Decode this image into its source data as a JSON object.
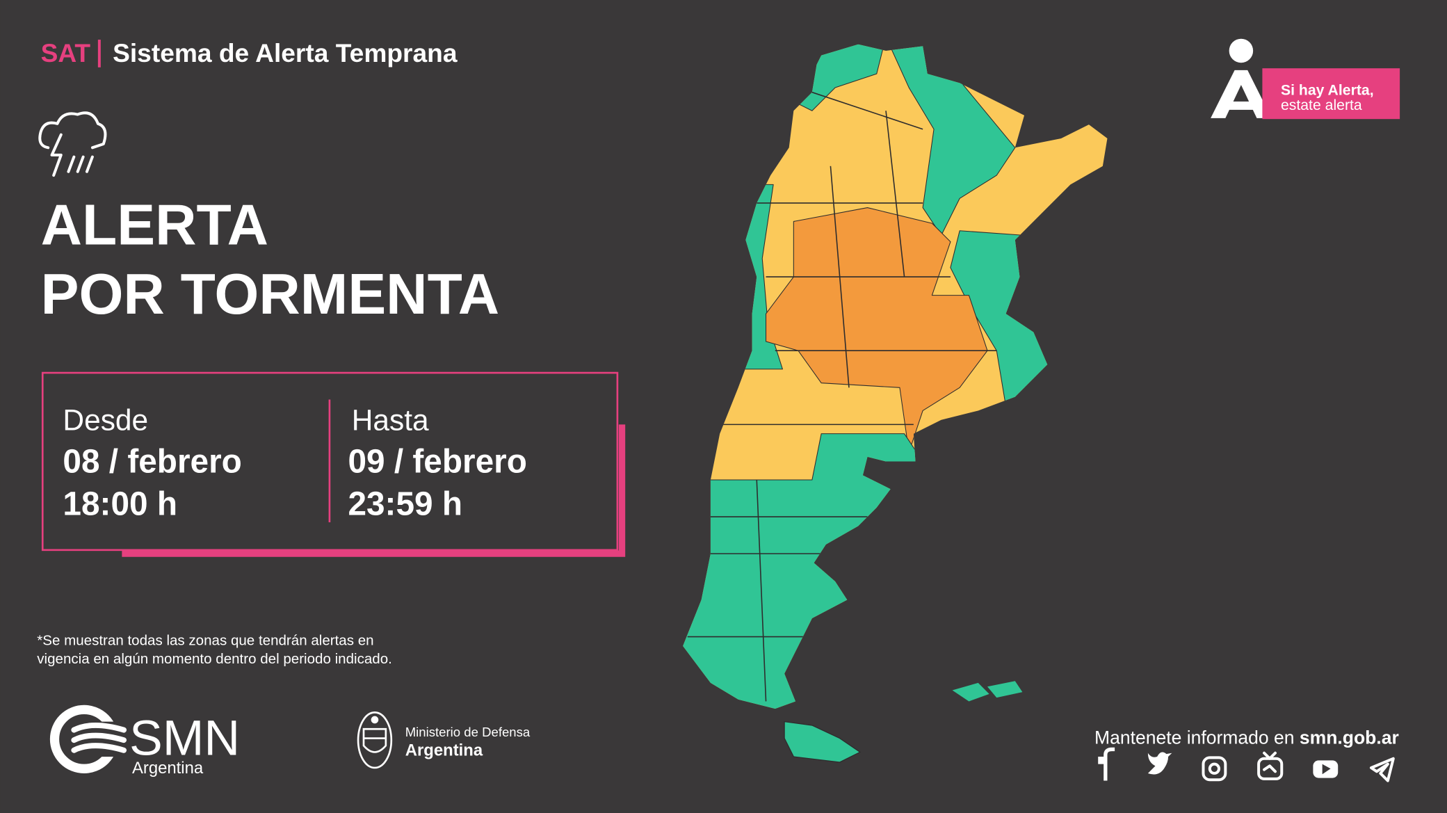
{
  "header": {
    "sat": "SAT",
    "title": "Sistema de Alerta Temprana"
  },
  "alert": {
    "title": [
      "ALERTA",
      "POR TORMENTA"
    ]
  },
  "period": {
    "from": {
      "label": "Desde",
      "date": "08 / febrero",
      "time": "18:00 h"
    },
    "to": {
      "label": "Hasta",
      "date": "09 / febrero",
      "time": "23:59 h"
    }
  },
  "note": [
    "*Se muestran todas las zonas que tendrán alertas en",
    "vigencia en algún momento dentro del periodo indicado."
  ],
  "slogan": {
    "bold": "Si hay Alerta,",
    "normal": "estate alerta"
  },
  "logos": {
    "smn": {
      "name": "SMN",
      "country": "Argentina"
    },
    "ministry": {
      "name": "Ministerio de Defensa",
      "country": "Argentina"
    }
  },
  "footer": {
    "text": "Mantenete informado en",
    "site": "smn.gob.ar"
  }
}
